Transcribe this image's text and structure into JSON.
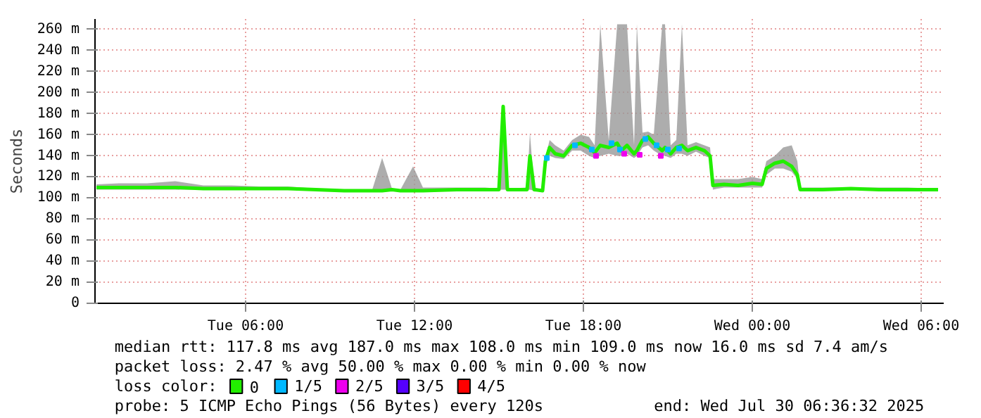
{
  "chart_data": {
    "type": "line",
    "ylabel": "Seconds",
    "legend_title": "loss color:",
    "legend": "bottom",
    "grid": true,
    "xlim": [
      "2025-07-29T00:39",
      "2025-07-30T06:48"
    ],
    "ylim": [
      0,
      270
    ],
    "xticks": [
      {
        "value": "2025-07-29T06:00",
        "label": "Tue 06:00"
      },
      {
        "value": "2025-07-29T12:00",
        "label": "Tue 12:00"
      },
      {
        "value": "2025-07-29T18:00",
        "label": "Tue 18:00"
      },
      {
        "value": "2025-07-30T00:00",
        "label": "Wed 00:00"
      },
      {
        "value": "2025-07-30T06:00",
        "label": "Wed 06:00"
      }
    ],
    "yticks": [
      0,
      {
        "value": 20,
        "label": "20 m"
      },
      {
        "value": 40,
        "label": "40 m"
      },
      {
        "value": 60,
        "label": "60 m"
      },
      {
        "value": 80,
        "label": "80 m"
      },
      {
        "value": 100,
        "label": "100 m"
      },
      {
        "value": 120,
        "label": "120 m"
      },
      {
        "value": 140,
        "label": "140 m"
      },
      {
        "value": 160,
        "label": "160 m"
      },
      {
        "value": 180,
        "label": "180 m"
      },
      {
        "value": 200,
        "label": "200 m"
      },
      {
        "value": 220,
        "label": "220 m"
      },
      {
        "value": 240,
        "label": "240 m"
      },
      {
        "value": 260,
        "label": "260 m"
      }
    ],
    "series": [
      {
        "name": "0",
        "color": "#22ee00",
        "x": [
          "2025-07-29T00:42",
          "2025-07-29T01:30",
          "2025-07-29T02:30",
          "2025-07-29T03:30",
          "2025-07-29T04:30",
          "2025-07-29T05:30",
          "2025-07-29T06:30",
          "2025-07-29T07:30",
          "2025-07-29T08:30",
          "2025-07-29T09:30",
          "2025-07-29T10:30",
          "2025-07-29T10:51",
          "2025-07-29T11:12",
          "2025-07-29T11:30",
          "2025-07-29T11:57",
          "2025-07-29T12:18",
          "2025-07-29T13:30",
          "2025-07-29T14:30",
          "2025-07-29T15:00",
          "2025-07-29T15:09",
          "2025-07-29T15:18",
          "2025-07-29T16:00",
          "2025-07-29T16:06",
          "2025-07-29T16:15",
          "2025-07-29T16:33",
          "2025-07-29T16:39",
          "2025-07-29T16:48",
          "2025-07-29T17:00",
          "2025-07-29T17:18",
          "2025-07-29T17:36",
          "2025-07-29T17:54",
          "2025-07-29T18:12",
          "2025-07-29T18:24",
          "2025-07-29T18:36",
          "2025-07-29T18:54",
          "2025-07-29T19:12",
          "2025-07-29T19:21",
          "2025-07-29T19:33",
          "2025-07-29T19:48",
          "2025-07-29T19:54",
          "2025-07-29T20:06",
          "2025-07-29T20:18",
          "2025-07-29T20:30",
          "2025-07-29T20:48",
          "2025-07-29T20:54",
          "2025-07-29T21:06",
          "2025-07-29T21:18",
          "2025-07-29T21:30",
          "2025-07-29T21:42",
          "2025-07-29T22:00",
          "2025-07-29T22:18",
          "2025-07-29T22:30",
          "2025-07-29T22:36",
          "2025-07-29T23:00",
          "2025-07-29T23:30",
          "2025-07-30T00:00",
          "2025-07-30T00:21",
          "2025-07-30T00:30",
          "2025-07-30T00:48",
          "2025-07-30T01:06",
          "2025-07-30T01:24",
          "2025-07-30T01:36",
          "2025-07-30T01:42",
          "2025-07-30T02:30",
          "2025-07-30T03:30",
          "2025-07-30T04:30",
          "2025-07-30T05:30",
          "2025-07-30T06:36"
        ],
        "values": [
          110,
          110,
          110,
          110,
          109,
          109,
          109,
          109,
          108,
          107,
          107,
          107,
          108,
          107,
          107,
          107,
          108,
          108,
          108,
          187,
          108,
          108,
          140,
          108,
          107,
          135,
          148,
          142,
          140,
          150,
          152,
          148,
          143,
          150,
          148,
          152,
          145,
          150,
          142,
          145,
          155,
          158,
          152,
          145,
          148,
          142,
          148,
          150,
          145,
          148,
          145,
          140,
          112,
          113,
          112,
          114,
          113,
          128,
          133,
          135,
          130,
          122,
          108,
          108,
          109,
          108,
          108,
          108
        ],
        "lower": [
          108,
          108,
          108,
          108,
          108,
          108,
          108,
          108,
          108,
          107,
          107,
          107,
          107,
          107,
          107,
          107,
          108,
          108,
          108,
          108,
          108,
          108,
          108,
          107,
          107,
          130,
          140,
          138,
          137,
          145,
          145,
          140,
          138,
          140,
          142,
          140,
          140,
          142,
          138,
          140,
          148,
          150,
          145,
          140,
          140,
          138,
          142,
          142,
          140,
          144,
          140,
          138,
          108,
          110,
          110,
          110,
          110,
          122,
          128,
          128,
          125,
          118,
          107,
          107,
          108,
          107,
          107,
          107
        ],
        "upper": [
          113,
          114,
          114,
          116,
          112,
          112,
          111,
          111,
          109,
          108,
          108,
          138,
          109,
          108,
          130,
          110,
          110,
          110,
          109,
          188,
          109,
          110,
          162,
          110,
          108,
          138,
          155,
          150,
          145,
          155,
          160,
          158,
          150,
          265,
          155,
          265,
          265,
          265,
          150,
          265,
          162,
          163,
          160,
          265,
          265,
          150,
          155,
          265,
          150,
          153,
          150,
          148,
          118,
          118,
          118,
          120,
          118,
          135,
          140,
          148,
          150,
          135,
          110,
          110,
          110,
          110,
          110,
          109
        ]
      },
      {
        "name": "1/5",
        "type": "scatter",
        "color": "#00b8ff",
        "x": [
          "2025-07-29T16:42",
          "2025-07-29T17:42",
          "2025-07-29T18:18",
          "2025-07-29T19:00",
          "2025-07-29T19:18",
          "2025-07-29T20:12",
          "2025-07-29T20:36",
          "2025-07-29T21:00",
          "2025-07-29T21:24"
        ],
        "values": [
          138,
          150,
          146,
          152,
          146,
          156,
          150,
          146,
          147
        ]
      },
      {
        "name": "2/5",
        "type": "scatter",
        "color": "#ee00ee",
        "x": [
          "2025-07-29T18:27",
          "2025-07-29T19:27",
          "2025-07-29T20:00",
          "2025-07-29T20:45"
        ],
        "values": [
          140,
          142,
          141,
          140
        ]
      },
      {
        "name": "3/5",
        "type": "scatter",
        "color": "#5500ff"
      },
      {
        "name": "4/5",
        "type": "scatter",
        "color": "#ff0000"
      }
    ],
    "annotations": [
      "median rtt:  117.8 ms avg  187.0 ms max  108.0 ms min  109.0 ms now  16.0 ms sd  7.4   am/s",
      "packet loss: 2.47 % avg  50.00 % max  0.00 % min  0.00 % now",
      "probe:       5 ICMP Echo Pings (56 Bytes) every 120s",
      "end: Wed Jul 30 06:36:32 2025"
    ]
  }
}
